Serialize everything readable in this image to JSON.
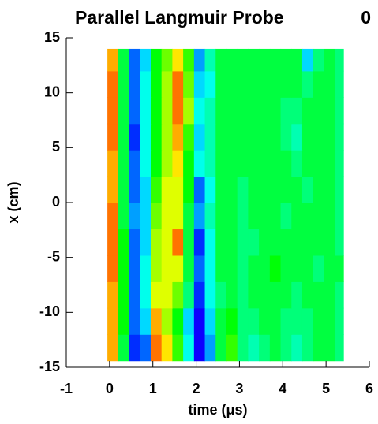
{
  "chart_data": {
    "type": "heatmap",
    "title": "Parallel Langmuir Probe",
    "annotation": "0",
    "xlabel": "time (μs)",
    "ylabel": "x (cm)",
    "colormap": "rainbow",
    "xlim": [
      -1,
      6
    ],
    "ylim": [
      -15,
      15
    ],
    "xticks": [
      -1,
      0,
      1,
      2,
      3,
      4,
      5,
      6
    ],
    "yticks": [
      -15,
      -10,
      -5,
      0,
      5,
      10,
      15
    ],
    "xbins": [
      -0.05,
      0.2,
      0.45,
      0.7,
      0.95,
      1.2,
      1.45,
      1.7,
      1.95,
      2.2,
      2.45,
      2.7,
      2.95,
      3.2,
      3.45,
      3.7,
      3.95,
      4.2,
      4.45,
      4.7,
      4.95,
      5.2,
      5.4
    ],
    "ybins": [
      -14.4,
      -12,
      -9.6,
      -7.2,
      -4.8,
      -2.4,
      0,
      2.4,
      4.8,
      7.2,
      9.6,
      12,
      14
    ],
    "z": [
      [
        0.85,
        0.5,
        0.15,
        0.2,
        0.9,
        0.8,
        0.6,
        0.35,
        0.1,
        0.25,
        0.5,
        0.6,
        0.45,
        0.4,
        0.45,
        0.5,
        0.45,
        0.4,
        0.45,
        0.5,
        0.5,
        0.45
      ],
      [
        0.85,
        0.55,
        0.2,
        0.3,
        0.85,
        0.7,
        0.55,
        0.3,
        0.1,
        0.3,
        0.5,
        0.55,
        0.45,
        0.45,
        0.5,
        0.5,
        0.45,
        0.45,
        0.45,
        0.5,
        0.5,
        0.45
      ],
      [
        0.85,
        0.55,
        0.2,
        0.35,
        0.75,
        0.75,
        0.65,
        0.45,
        0.15,
        0.35,
        0.45,
        0.5,
        0.45,
        0.5,
        0.5,
        0.5,
        0.5,
        0.45,
        0.5,
        0.5,
        0.5,
        0.45
      ],
      [
        0.9,
        0.55,
        0.2,
        0.35,
        0.7,
        0.75,
        0.75,
        0.5,
        0.2,
        0.35,
        0.5,
        0.5,
        0.45,
        0.5,
        0.5,
        0.55,
        0.5,
        0.5,
        0.5,
        0.45,
        0.5,
        0.5
      ],
      [
        0.9,
        0.55,
        0.2,
        0.3,
        0.7,
        0.75,
        0.9,
        0.5,
        0.15,
        0.35,
        0.5,
        0.5,
        0.45,
        0.45,
        0.5,
        0.5,
        0.5,
        0.5,
        0.5,
        0.5,
        0.5,
        0.45
      ],
      [
        0.9,
        0.5,
        0.25,
        0.3,
        0.65,
        0.75,
        0.75,
        0.5,
        0.25,
        0.4,
        0.5,
        0.5,
        0.45,
        0.5,
        0.5,
        0.5,
        0.45,
        0.5,
        0.5,
        0.5,
        0.5,
        0.45
      ],
      [
        0.85,
        0.5,
        0.2,
        0.3,
        0.6,
        0.75,
        0.75,
        0.55,
        0.2,
        0.35,
        0.5,
        0.5,
        0.45,
        0.5,
        0.5,
        0.5,
        0.5,
        0.5,
        0.45,
        0.5,
        0.5,
        0.45
      ],
      [
        0.85,
        0.5,
        0.2,
        0.35,
        0.55,
        0.7,
        0.8,
        0.55,
        0.35,
        0.4,
        0.5,
        0.5,
        0.5,
        0.5,
        0.5,
        0.5,
        0.5,
        0.45,
        0.5,
        0.5,
        0.5,
        0.45
      ],
      [
        0.9,
        0.5,
        0.15,
        0.35,
        0.55,
        0.7,
        0.85,
        0.6,
        0.3,
        0.4,
        0.5,
        0.5,
        0.5,
        0.5,
        0.5,
        0.5,
        0.45,
        0.4,
        0.5,
        0.5,
        0.5,
        0.45
      ],
      [
        0.9,
        0.5,
        0.2,
        0.35,
        0.55,
        0.7,
        0.9,
        0.7,
        0.35,
        0.4,
        0.5,
        0.5,
        0.5,
        0.5,
        0.5,
        0.5,
        0.45,
        0.45,
        0.5,
        0.5,
        0.5,
        0.45
      ],
      [
        0.9,
        0.5,
        0.2,
        0.35,
        0.55,
        0.7,
        0.9,
        0.65,
        0.3,
        0.35,
        0.5,
        0.5,
        0.5,
        0.5,
        0.5,
        0.5,
        0.5,
        0.5,
        0.45,
        0.5,
        0.5,
        0.45
      ],
      [
        0.85,
        0.5,
        0.2,
        0.3,
        0.55,
        0.65,
        0.8,
        0.6,
        0.25,
        0.4,
        0.5,
        0.5,
        0.5,
        0.5,
        0.5,
        0.5,
        0.5,
        0.5,
        0.3,
        0.45,
        0.5,
        0.45
      ]
    ]
  }
}
